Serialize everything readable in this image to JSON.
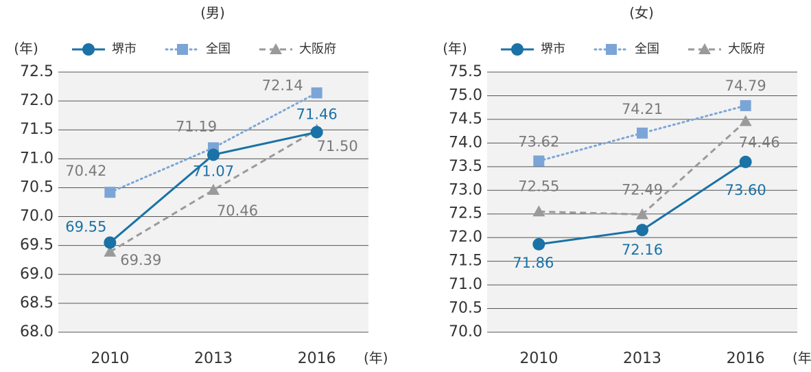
{
  "chart_data": [
    {
      "type": "line",
      "title": "(男)",
      "y_label": "(年)",
      "x_label": "(年)",
      "categories": [
        "2010",
        "2013",
        "2016"
      ],
      "ylim": [
        68,
        72.5
      ],
      "yticks": [
        {
          "value": 68,
          "label": "68.0"
        },
        68.5,
        {
          "value": 69,
          "label": "69.0"
        },
        69.5,
        {
          "value": 70,
          "label": "70.0"
        },
        70.5,
        {
          "value": 71,
          "label": "71.0"
        },
        71.5,
        {
          "value": 72,
          "label": "72.0"
        },
        72.5
      ],
      "grid": true,
      "legend": "top",
      "series": [
        {
          "name": "堺市",
          "color": "#1a72a6",
          "style": "solid",
          "marker": "circle",
          "values": [
            69.55,
            71.07,
            71.46
          ]
        },
        {
          "name": "全国",
          "color": "#7ba5d6",
          "style": "dotted",
          "marker": "square",
          "values": [
            70.42,
            71.19,
            72.14
          ]
        },
        {
          "name": "大阪府",
          "color": "#9a9a9a",
          "style": "dashed",
          "marker": "triangle",
          "values": [
            69.39,
            70.46,
            71.5
          ],
          "value_labels": [
            "69.39",
            "70.46",
            "71.50"
          ]
        }
      ]
    },
    {
      "type": "line",
      "title": "(女)",
      "y_label": "(年)",
      "x_label": "(年)",
      "categories": [
        "2010",
        "2013",
        "2016"
      ],
      "ylim": [
        70,
        75.5
      ],
      "yticks": [
        {
          "value": 70,
          "label": "70.0"
        },
        70.5,
        {
          "value": 71,
          "label": "71.0"
        },
        71.5,
        {
          "value": 72,
          "label": "72.0"
        },
        72.5,
        {
          "value": 73,
          "label": "73.0"
        },
        73.5,
        {
          "value": 74,
          "label": "74.0"
        },
        74.5,
        {
          "value": 75,
          "label": "75.0"
        },
        75.5
      ],
      "grid": true,
      "legend": "top",
      "series": [
        {
          "name": "堺市",
          "color": "#1a72a6",
          "style": "solid",
          "marker": "circle",
          "values": [
            71.86,
            72.16,
            73.6
          ],
          "value_labels": [
            "71.86",
            "72.16",
            "73.60"
          ]
        },
        {
          "name": "全国",
          "color": "#7ba5d6",
          "style": "dotted",
          "marker": "square",
          "values": [
            73.62,
            74.21,
            74.79
          ]
        },
        {
          "name": "大阪府",
          "color": "#9a9a9a",
          "style": "dashed",
          "marker": "triangle",
          "values": [
            72.55,
            72.49,
            74.46
          ]
        }
      ]
    }
  ]
}
